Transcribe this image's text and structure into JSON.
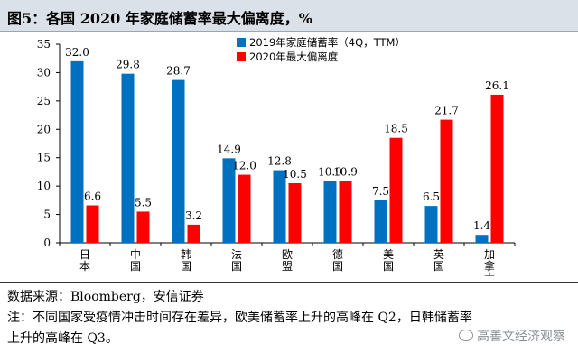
{
  "header": {
    "title": "图5：各国 2020 年家庭储蓄率最大偏离度，%"
  },
  "chart_data": {
    "type": "bar",
    "categories": [
      "日本",
      "中国",
      "韩国",
      "法国",
      "欧盟",
      "德国",
      "美国",
      "英国",
      "加拿大"
    ],
    "series": [
      {
        "name": "2019年家庭储蓄率（4Q，TTM）",
        "color": "#0070c0",
        "values": [
          32.0,
          29.8,
          28.7,
          14.9,
          12.8,
          10.9,
          7.5,
          6.5,
          1.4
        ]
      },
      {
        "name": "2020年最大偏离度",
        "color": "#ff0000",
        "values": [
          6.6,
          5.5,
          3.2,
          12.0,
          10.5,
          10.9,
          18.5,
          21.7,
          26.1
        ]
      }
    ],
    "ylim": [
      0,
      35
    ],
    "yticks": [
      0,
      5,
      10,
      15,
      20,
      25,
      30,
      35
    ],
    "legend_position": "top-right",
    "grid": false
  },
  "footer": {
    "source": "数据来源：Bloomberg，安信证券",
    "note_line1": "注：不同国家受疫情冲击时间存在差异，欧美储蓄率上升的高峰在 Q2，日韩储蓄率",
    "note_line2": "上升的高峰在 Q3。"
  },
  "watermark": {
    "text": "高善文经济观察",
    "icon": "wechat-icon"
  }
}
